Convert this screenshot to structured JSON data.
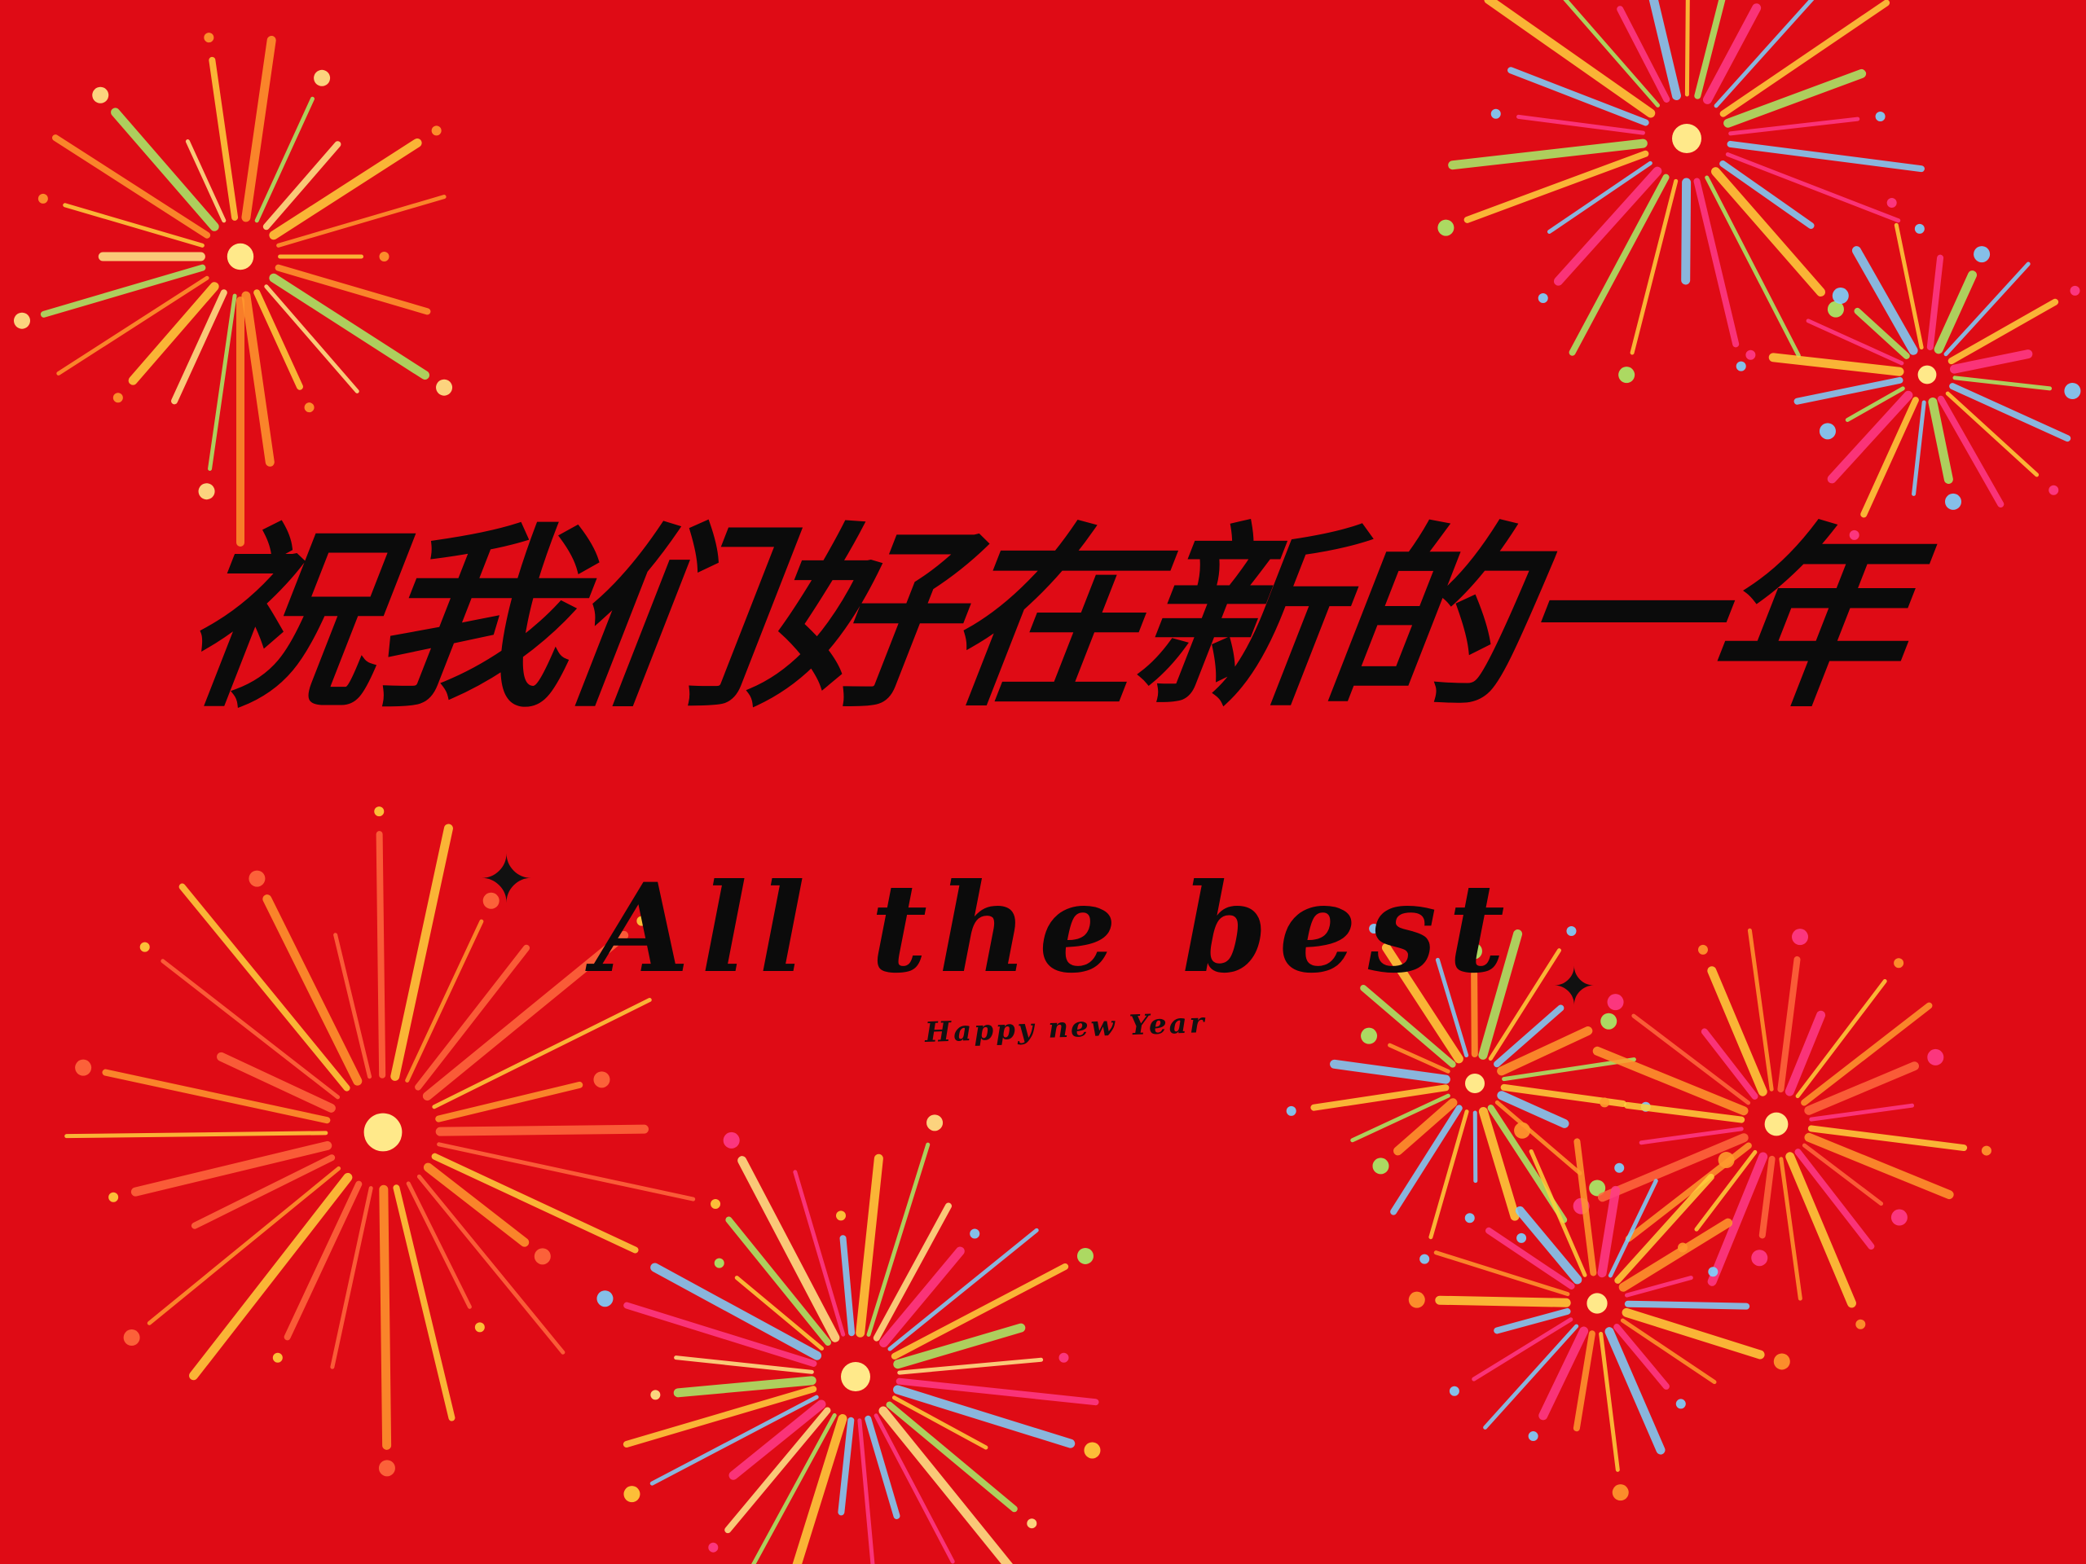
{
  "card": {
    "background_color": "#df0b15",
    "title": "祝我们好在新的一年",
    "subtitle": "All the best",
    "tagline": "Happy new Year",
    "sparkle_glyph": "✦"
  },
  "decorations": {
    "icons": [
      "firework-icon",
      "sparkle-icon"
    ],
    "palette": [
      "#ffd23c",
      "#ff9a2e",
      "#ff3b8a",
      "#7cd3ff",
      "#a6f06a",
      "#ffe98a",
      "#ff6a3d"
    ]
  }
}
